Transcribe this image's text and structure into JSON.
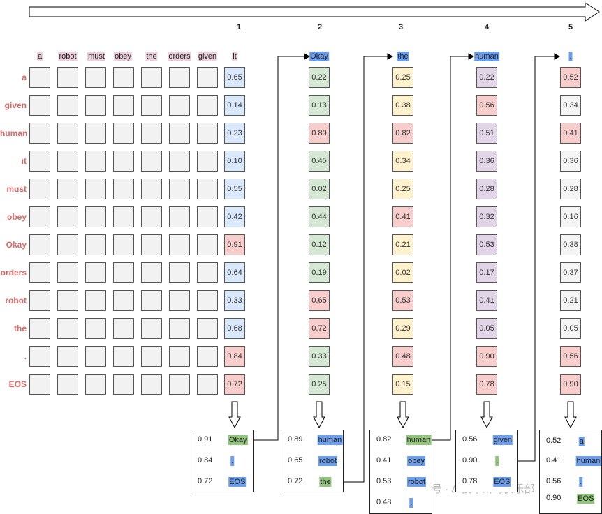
{
  "steps": [
    "1",
    "2",
    "3",
    "4",
    "5"
  ],
  "row_labels": [
    "a",
    "given",
    "human",
    "it",
    "must",
    "obey",
    "Okay",
    "orders",
    "robot",
    "the",
    ".",
    "EOS"
  ],
  "input_tokens": [
    "a",
    "robot",
    "must",
    "obey",
    "the",
    "orders",
    "given",
    "it"
  ],
  "columns": [
    {
      "header": "it",
      "header_color": "#ead1dc",
      "scores": [
        {
          "v": "0.65",
          "c": "#dae8fc"
        },
        {
          "v": "0.14",
          "c": "#dae8fc"
        },
        {
          "v": "0.23",
          "c": "#dae8fc"
        },
        {
          "v": "0.10",
          "c": "#dae8fc"
        },
        {
          "v": "0.55",
          "c": "#dae8fc"
        },
        {
          "v": "0.42",
          "c": "#dae8fc"
        },
        {
          "v": "0.91",
          "c": "#f8cecc"
        },
        {
          "v": "0.64",
          "c": "#dae8fc"
        },
        {
          "v": "0.33",
          "c": "#dae8fc"
        },
        {
          "v": "0.68",
          "c": "#dae8fc"
        },
        {
          "v": "0.84",
          "c": "#f8cecc"
        },
        {
          "v": "0.72",
          "c": "#f8cecc"
        }
      ],
      "candidates": [
        {
          "score": "0.91",
          "token": "Okay",
          "color": "#93c47d"
        },
        {
          "score": "0.84",
          "token": ".",
          "color": "#6d9eeb"
        },
        {
          "score": "0.72",
          "token": "EOS",
          "color": "#6d9eeb"
        }
      ]
    },
    {
      "header": "Okay",
      "header_color": "#6d9eeb",
      "scores": [
        {
          "v": "0.22",
          "c": "#d5e8d4"
        },
        {
          "v": "0.13",
          "c": "#d5e8d4"
        },
        {
          "v": "0.89",
          "c": "#f8cecc"
        },
        {
          "v": "0.45",
          "c": "#d5e8d4"
        },
        {
          "v": "0.02",
          "c": "#d5e8d4"
        },
        {
          "v": "0.44",
          "c": "#d5e8d4"
        },
        {
          "v": "0.12",
          "c": "#d5e8d4"
        },
        {
          "v": "0.19",
          "c": "#d5e8d4"
        },
        {
          "v": "0.65",
          "c": "#f8cecc"
        },
        {
          "v": "0.72",
          "c": "#f8cecc"
        },
        {
          "v": "0.33",
          "c": "#d5e8d4"
        },
        {
          "v": "0.25",
          "c": "#d5e8d4"
        }
      ],
      "candidates": [
        {
          "score": "0.89",
          "token": "human",
          "color": "#6d9eeb"
        },
        {
          "score": "0.65",
          "token": "robot",
          "color": "#6d9eeb"
        },
        {
          "score": "0.72",
          "token": "the",
          "color": "#93c47d"
        }
      ]
    },
    {
      "header": "the",
      "header_color": "#6d9eeb",
      "scores": [
        {
          "v": "0.25",
          "c": "#fff2cc"
        },
        {
          "v": "0.38",
          "c": "#fff2cc"
        },
        {
          "v": "0.82",
          "c": "#f8cecc"
        },
        {
          "v": "0.34",
          "c": "#fff2cc"
        },
        {
          "v": "0.25",
          "c": "#fff2cc"
        },
        {
          "v": "0.41",
          "c": "#f8cecc"
        },
        {
          "v": "0.21",
          "c": "#fff2cc"
        },
        {
          "v": "0.02",
          "c": "#fff2cc"
        },
        {
          "v": "0.53",
          "c": "#f8cecc"
        },
        {
          "v": "0.29",
          "c": "#fff2cc"
        },
        {
          "v": "0.48",
          "c": "#f8cecc"
        },
        {
          "v": "0.15",
          "c": "#fff2cc"
        }
      ],
      "candidates": [
        {
          "score": "0.82",
          "token": "human",
          "color": "#93c47d"
        },
        {
          "score": "0.41",
          "token": "obey",
          "color": "#6d9eeb"
        },
        {
          "score": "0.53",
          "token": "robot",
          "color": "#6d9eeb"
        },
        {
          "score": "0.48",
          "token": ".",
          "color": "#6d9eeb"
        }
      ]
    },
    {
      "header": "human",
      "header_color": "#6d9eeb",
      "scores": [
        {
          "v": "0.22",
          "c": "#e1d5e7"
        },
        {
          "v": "0.56",
          "c": "#f8cecc"
        },
        {
          "v": "0.51",
          "c": "#e1d5e7"
        },
        {
          "v": "0.36",
          "c": "#e1d5e7"
        },
        {
          "v": "0.28",
          "c": "#e1d5e7"
        },
        {
          "v": "0.32",
          "c": "#e1d5e7"
        },
        {
          "v": "0.53",
          "c": "#e1d5e7"
        },
        {
          "v": "0.17",
          "c": "#e1d5e7"
        },
        {
          "v": "0.41",
          "c": "#e1d5e7"
        },
        {
          "v": "0.05",
          "c": "#e1d5e7"
        },
        {
          "v": "0.90",
          "c": "#f8cecc"
        },
        {
          "v": "0.78",
          "c": "#f8cecc"
        }
      ],
      "candidates": [
        {
          "score": "0.56",
          "token": "given",
          "color": "#6d9eeb"
        },
        {
          "score": "0.90",
          "token": ".",
          "color": "#93c47d"
        },
        {
          "score": "0.78",
          "token": "EOS",
          "color": "#6d9eeb"
        }
      ]
    },
    {
      "header": ".",
      "header_color": "#6d9eeb",
      "scores": [
        {
          "v": "0.52",
          "c": "#f8cecc"
        },
        {
          "v": "0.34",
          "c": "#f5f5f5"
        },
        {
          "v": "0.41",
          "c": "#f8cecc"
        },
        {
          "v": "0.36",
          "c": "#f5f5f5"
        },
        {
          "v": "0.28",
          "c": "#f5f5f5"
        },
        {
          "v": "0.16",
          "c": "#f5f5f5"
        },
        {
          "v": "0.38",
          "c": "#f5f5f5"
        },
        {
          "v": "0.37",
          "c": "#f5f5f5"
        },
        {
          "v": "0.21",
          "c": "#f5f5f5"
        },
        {
          "v": "0.05",
          "c": "#f5f5f5"
        },
        {
          "v": "0.56",
          "c": "#f8cecc"
        },
        {
          "v": "0.90",
          "c": "#f8cecc"
        }
      ],
      "candidates": [
        {
          "score": "0.52",
          "token": "a",
          "color": "#6d9eeb"
        },
        {
          "score": "0.41",
          "token": "human",
          "color": "#6d9eeb"
        },
        {
          "score": "0.56",
          "token": ".",
          "color": "#6d9eeb"
        },
        {
          "score": "0.90",
          "token": "EOS",
          "color": "#93c47d"
        }
      ]
    }
  ],
  "watermark": "公众号 · AI技术研习俱乐部"
}
